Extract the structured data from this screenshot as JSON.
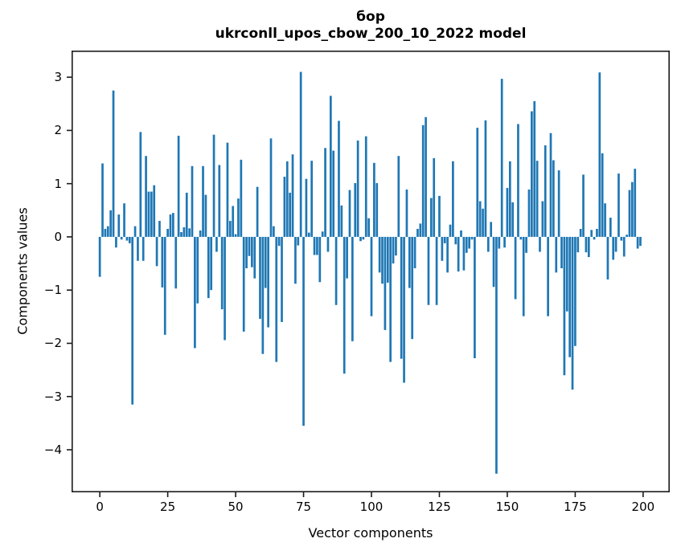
{
  "chart_data": {
    "type": "bar",
    "title": "бор",
    "subtitle": "ukrconll_upos_cbow_200_10_2022 model",
    "xlabel": "Vector components",
    "ylabel": "Components values",
    "n_components": 200,
    "x_is_index": true,
    "xticks": [
      0,
      25,
      50,
      75,
      100,
      125,
      150,
      175,
      200
    ],
    "yticks": [
      3,
      2,
      1,
      0,
      -1,
      -2,
      -3,
      -4
    ],
    "xlim": [
      -10.4,
      209.8
    ],
    "ylim": [
      -4.8,
      3.5
    ],
    "grid": false,
    "legend": null,
    "bar_color": "#1f77b4",
    "axis_color": "#1a1a1a",
    "bar_width_units": 0.8,
    "values": [
      -0.75,
      1.38,
      0.15,
      0.2,
      0.5,
      2.75,
      -0.2,
      0.42,
      -0.05,
      0.63,
      -0.07,
      -0.12,
      -3.15,
      0.2,
      -0.45,
      1.97,
      -0.45,
      1.52,
      0.85,
      0.85,
      0.97,
      -0.55,
      0.3,
      -0.95,
      -1.84,
      0.15,
      0.42,
      0.45,
      -0.97,
      1.9,
      0.09,
      0.18,
      0.83,
      0.16,
      1.33,
      -2.09,
      -1.25,
      0.12,
      1.33,
      0.79,
      -1.15,
      -1.0,
      1.92,
      -0.28,
      1.35,
      -1.36,
      -1.94,
      1.77,
      0.3,
      0.58,
      0.05,
      0.72,
      1.45,
      -1.78,
      -0.59,
      -0.36,
      -0.57,
      -0.78,
      0.94,
      -1.54,
      -2.2,
      -0.96,
      -1.7,
      1.85,
      0.2,
      -2.35,
      -0.17,
      -1.6,
      1.13,
      1.42,
      0.83,
      1.55,
      -0.88,
      -0.16,
      3.1,
      -3.55,
      1.09,
      0.08,
      1.43,
      -0.34,
      -0.34,
      -0.85,
      0.1,
      1.67,
      -0.28,
      2.65,
      1.62,
      -1.28,
      2.18,
      0.59,
      -2.57,
      -0.78,
      0.88,
      -1.96,
      1.01,
      1.81,
      -0.08,
      -0.05,
      1.89,
      0.35,
      -1.49,
      1.39,
      1.01,
      -0.67,
      -0.88,
      -1.75,
      -0.86,
      -2.35,
      -0.5,
      -0.35,
      1.52,
      -2.29,
      -2.74,
      0.89,
      -0.96,
      -1.92,
      -0.59,
      0.15,
      0.25,
      2.1,
      2.25,
      -1.28,
      0.73,
      1.48,
      -1.28,
      0.77,
      -0.45,
      -0.12,
      -0.67,
      0.23,
      1.42,
      -0.14,
      -0.65,
      0.12,
      -0.63,
      -0.3,
      -0.22,
      -0.05,
      -2.28,
      2.05,
      0.67,
      0.53,
      2.19,
      -0.28,
      0.28,
      -0.94,
      -4.45,
      -0.22,
      2.97,
      -0.2,
      0.92,
      1.42,
      0.65,
      -1.17,
      2.12,
      -0.05,
      -1.49,
      -0.3,
      0.89,
      2.36,
      2.55,
      1.43,
      -0.28,
      0.67,
      1.72,
      -1.49,
      1.95,
      1.44,
      -0.67,
      1.25,
      -0.59,
      -2.6,
      -1.4,
      -2.26,
      -2.87,
      -2.05,
      -0.29,
      0.15,
      1.17,
      -0.29,
      -0.38,
      0.13,
      -0.05,
      0.15,
      3.09,
      1.57,
      0.63,
      -0.8,
      0.36,
      -0.43,
      -0.28,
      1.19,
      -0.07,
      -0.37,
      0.04,
      0.88,
      1.03,
      1.28,
      -0.22,
      -0.17
    ]
  }
}
